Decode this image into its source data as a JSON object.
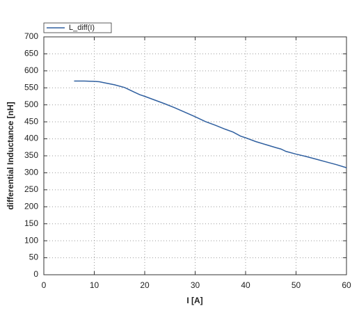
{
  "chart_data": {
    "type": "line",
    "xlabel": "I [A]",
    "ylabel": "differential Inductance [nH]",
    "x": [
      6,
      8,
      10,
      11,
      12,
      14,
      16,
      18,
      19,
      20,
      22,
      24,
      26,
      28,
      30,
      32,
      34,
      36,
      37.5,
      39,
      40,
      42,
      44,
      46,
      47,
      48,
      50,
      52,
      54,
      56,
      58,
      60
    ],
    "series": [
      {
        "name": "L_diff(I)",
        "color": "#2f5f9f",
        "values": [
          570,
          570,
          569,
          568,
          565,
          559,
          551,
          537,
          530,
          525,
          514,
          503,
          491,
          478,
          465,
          451,
          440,
          428,
          420,
          408,
          403,
          392,
          383,
          374,
          370,
          363,
          355,
          348,
          340,
          332,
          324,
          315
        ]
      }
    ],
    "xlim": [
      0,
      60
    ],
    "xticks": [
      0,
      10,
      20,
      30,
      40,
      50,
      60
    ],
    "ylim": [
      0,
      700
    ],
    "yticks": [
      0,
      50,
      100,
      150,
      200,
      250,
      300,
      350,
      400,
      450,
      500,
      550,
      600,
      650,
      700
    ],
    "grid": true,
    "legend": "upper left"
  }
}
